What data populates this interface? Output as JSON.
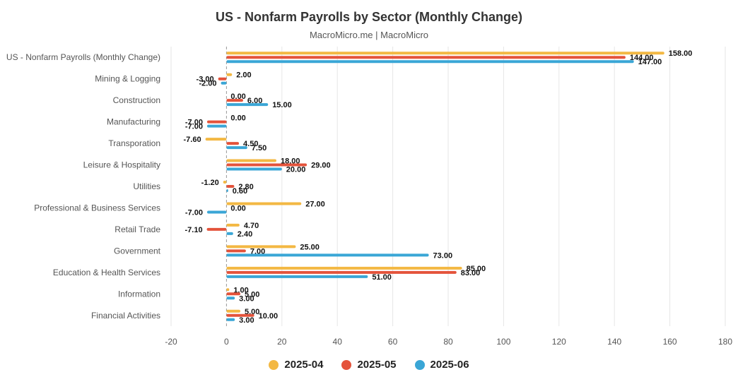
{
  "colors": {
    "s1": "#f3b843",
    "s2": "#e4533b",
    "s3": "#3aa6d6",
    "grid": "#e6e6e6",
    "zero": "#999999",
    "label": "#555555"
  },
  "chart_data": {
    "type": "bar",
    "orientation": "horizontal",
    "title": "US - Nonfarm Payrolls by Sector (Monthly Change)",
    "subtitle": "MacroMicro.me | MacroMicro",
    "categories": [
      "US - Nonfarm Payrolls (Monthly Change)",
      "Mining & Logging",
      "Construction",
      "Manufacturing",
      "Transporation",
      "Leisure & Hospitality",
      "Utilities",
      "Professional & Business Services",
      "Retail Trade",
      "Government",
      "Education & Health Services",
      "Information",
      "Financial Activities"
    ],
    "series": [
      {
        "name": "2025-04",
        "values": [
          158.0,
          2.0,
          0.0,
          0.0,
          -7.6,
          18.0,
          -1.2,
          27.0,
          4.7,
          25.0,
          85.0,
          1.0,
          5.0
        ]
      },
      {
        "name": "2025-05",
        "values": [
          144.0,
          -3.0,
          6.0,
          -7.0,
          4.5,
          29.0,
          2.8,
          0.0,
          -7.1,
          7.0,
          83.0,
          5.0,
          10.0
        ]
      },
      {
        "name": "2025-06",
        "values": [
          147.0,
          -2.0,
          15.0,
          -7.0,
          7.5,
          20.0,
          0.6,
          -7.0,
          2.4,
          73.0,
          51.0,
          3.0,
          3.0
        ]
      }
    ],
    "xlim": [
      -20,
      180
    ],
    "xticks": [
      -20,
      0,
      20,
      40,
      60,
      80,
      100,
      120,
      140,
      160,
      180
    ],
    "grid": true,
    "legend": "bottom-center"
  }
}
